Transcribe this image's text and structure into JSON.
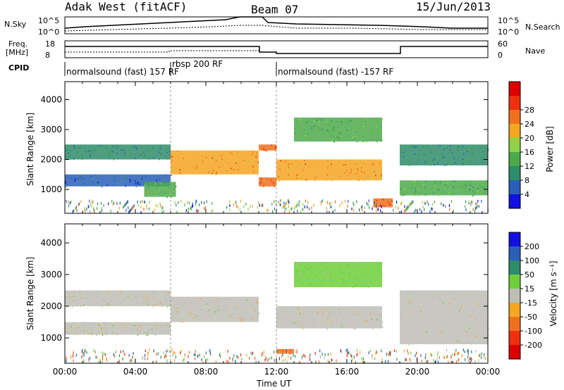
{
  "header": {
    "station": "Adak West (fitACF)",
    "beam": "Beam 07",
    "date": "15/Jun/2013"
  },
  "noise_panel": {
    "left_label": "N.Sky",
    "left_ticks": [
      "10^5",
      "10^0"
    ],
    "right_ticks": [
      "10^5",
      "10^0"
    ],
    "right_label": "N.Search"
  },
  "freq_panel": {
    "left_label_line1": "Freq.",
    "left_label_line2": "[MHz]",
    "left_ticks": [
      "18",
      "8"
    ],
    "right_ticks": [
      "60",
      "0"
    ],
    "right_label": "Nave"
  },
  "cpid": {
    "label": "CPID",
    "segments": [
      {
        "text": "normalsound (fast) 157 RF"
      },
      {
        "text": "rbsp 200 RF"
      },
      {
        "text": "normalsound (fast) -157 RF"
      }
    ]
  },
  "time_axis": {
    "label": "Time UT",
    "ticks": [
      "00:00",
      "04:00",
      "08:00",
      "12:00",
      "16:00",
      "20:00",
      "00:00"
    ]
  },
  "chart_data": [
    {
      "type": "heatmap",
      "title": "",
      "xlabel": "Time UT",
      "ylabel": "Slant Range [km]",
      "x_ticks": [
        "00:00",
        "04:00",
        "08:00",
        "12:00",
        "16:00",
        "20:00",
        "00:00"
      ],
      "xlim_hours": [
        0,
        24
      ],
      "y_ticks": [
        1000,
        2000,
        3000,
        4000
      ],
      "ylim_km": [
        200,
        4600
      ],
      "colorbar": {
        "label": "Power [dB]",
        "ticks": [
          "4",
          "8",
          "12",
          "16",
          "20",
          "24",
          "28"
        ],
        "colors": [
          "#1010e0",
          "#2a5fb8",
          "#2f8c6a",
          "#4caa4c",
          "#8fd24a",
          "#f5a623",
          "#f07020",
          "#ee3010",
          "#dd0000"
        ]
      },
      "bands": [
        {
          "t0": 0.0,
          "t1": 6.0,
          "r0": 2000,
          "r1": 2500,
          "value_db": 10
        },
        {
          "t0": 0.0,
          "t1": 6.0,
          "r0": 1100,
          "r1": 1500,
          "value_db": 8
        },
        {
          "t0": 4.5,
          "t1": 6.3,
          "r0": 750,
          "r1": 1250,
          "value_db": 16
        },
        {
          "t0": 6.0,
          "t1": 11.0,
          "r0": 1500,
          "r1": 2300,
          "value_db": 24
        },
        {
          "t0": 11.0,
          "t1": 12.0,
          "r0": 2300,
          "r1": 2500,
          "value_db": 26
        },
        {
          "t0": 11.0,
          "t1": 12.0,
          "r0": 1100,
          "r1": 1400,
          "value_db": 27
        },
        {
          "t0": 12.0,
          "t1": 18.0,
          "r0": 1300,
          "r1": 2000,
          "value_db": 24
        },
        {
          "t0": 13.0,
          "t1": 18.0,
          "r0": 2600,
          "r1": 3400,
          "value_db": 14
        },
        {
          "t0": 17.5,
          "t1": 18.6,
          "r0": 400,
          "r1": 700,
          "value_db": 28
        },
        {
          "t0": 19.0,
          "t1": 24.0,
          "r0": 1800,
          "r1": 2500,
          "value_db": 9
        },
        {
          "t0": 19.0,
          "t1": 24.0,
          "r0": 800,
          "r1": 1300,
          "value_db": 14
        }
      ]
    },
    {
      "type": "heatmap",
      "title": "",
      "xlabel": "Time UT",
      "ylabel": "Slant Range [km]",
      "x_ticks": [
        "00:00",
        "04:00",
        "08:00",
        "12:00",
        "16:00",
        "20:00",
        "00:00"
      ],
      "xlim_hours": [
        0,
        24
      ],
      "y_ticks": [
        1000,
        2000,
        3000,
        4000
      ],
      "ylim_km": [
        200,
        4600
      ],
      "colorbar": {
        "label": "Velocity [m s⁻¹]",
        "ticks": [
          "200",
          "100",
          "50",
          "15",
          "-15",
          "-50",
          "-100",
          "-200"
        ],
        "colors": [
          "#1010e0",
          "#2a5fb8",
          "#2f8c6a",
          "#6fcf3a",
          "#bebeb6",
          "#f5a623",
          "#f07020",
          "#ee3010",
          "#dd0000"
        ]
      },
      "bands": [
        {
          "t0": 0.0,
          "t1": 6.0,
          "r0": 2000,
          "r1": 2500,
          "value_ms": 0
        },
        {
          "t0": 0.0,
          "t1": 6.0,
          "r0": 1100,
          "r1": 1500,
          "value_ms": 0
        },
        {
          "t0": 6.0,
          "t1": 11.0,
          "r0": 1500,
          "r1": 2300,
          "value_ms": 0
        },
        {
          "t0": 12.0,
          "t1": 18.0,
          "r0": 1300,
          "r1": 2000,
          "value_ms": 0
        },
        {
          "t0": 13.0,
          "t1": 18.0,
          "r0": 2600,
          "r1": 3400,
          "value_ms": 30
        },
        {
          "t0": 12.0,
          "t1": 13.0,
          "r0": 500,
          "r1": 650,
          "value_ms": -60
        },
        {
          "t0": 19.0,
          "t1": 24.0,
          "r0": 800,
          "r1": 2500,
          "value_ms": 0
        }
      ]
    }
  ]
}
